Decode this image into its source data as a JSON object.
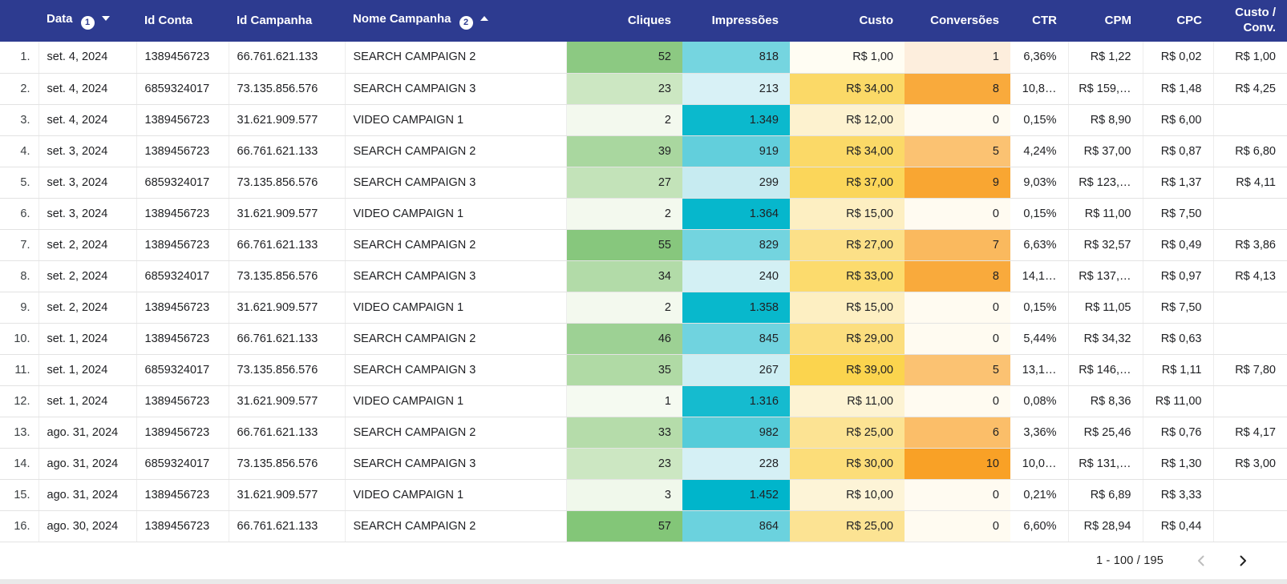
{
  "theme": {
    "header_bg": "#2d3b90",
    "header_text": "#ffffff",
    "row_divider": "#e3e3e3",
    "heat_green_max": "#83c678",
    "heat_teal_max": "#00b5cb",
    "heat_yellow_max": "#fbd44e",
    "heat_orange_max": "#f9a126",
    "chevron_disabled": "#bdbdbd",
    "chevron_enabled": "#212121"
  },
  "table": {
    "columns": [
      {
        "key": "idx",
        "label": ""
      },
      {
        "key": "data",
        "label": "Data",
        "badge": "1",
        "sort": "desc"
      },
      {
        "key": "id_conta",
        "label": "Id Conta"
      },
      {
        "key": "id_campanha",
        "label": "Id Campanha"
      },
      {
        "key": "nome_campanha",
        "label": "Nome Campanha",
        "badge": "2",
        "sort": "asc"
      },
      {
        "key": "cliques",
        "label": "Cliques"
      },
      {
        "key": "impressoes",
        "label": "Impressões"
      },
      {
        "key": "custo",
        "label": "Custo"
      },
      {
        "key": "conversoes",
        "label": "Conversões"
      },
      {
        "key": "ctr",
        "label": "CTR"
      },
      {
        "key": "cpm",
        "label": "CPM"
      },
      {
        "key": "cpc",
        "label": "CPC"
      },
      {
        "key": "custo_conv",
        "label": "Custo / Conv."
      }
    ],
    "rows": [
      {
        "idx": "1.",
        "data": "set. 4, 2024",
        "id_conta": "1389456723",
        "id_campanha": "66.761.621.133",
        "nome_campanha": "SEARCH CAMPAIGN 2",
        "cliques": {
          "v": "52",
          "bg": "#8cc982"
        },
        "impressoes": {
          "v": "818",
          "bg": "#75d5e0"
        },
        "custo": {
          "v": "R$ 1,00",
          "bg": "#fffdf3"
        },
        "conversoes": {
          "v": "1",
          "bg": "#fdeedd"
        },
        "ctr": "6,36%",
        "cpm": "R$ 1,22",
        "cpc": "R$ 0,02",
        "custo_conv": "R$ 1,00"
      },
      {
        "idx": "2.",
        "data": "set. 4, 2024",
        "id_conta": "6859324017",
        "id_campanha": "73.135.856.576",
        "nome_campanha": "SEARCH CAMPAIGN 3",
        "cliques": {
          "v": "23",
          "bg": "#cce7c2"
        },
        "impressoes": {
          "v": "213",
          "bg": "#d8f1f6"
        },
        "custo": {
          "v": "R$ 34,00",
          "bg": "#fbd967"
        },
        "conversoes": {
          "v": "8",
          "bg": "#f9aa3c"
        },
        "ctr": "10,8…",
        "cpm": "R$ 159,…",
        "cpc": "R$ 1,48",
        "custo_conv": "R$ 4,25"
      },
      {
        "idx": "3.",
        "data": "set. 4, 2024",
        "id_conta": "1389456723",
        "id_campanha": "31.621.909.577",
        "nome_campanha": "VIDEO CAMPAIGN 1",
        "cliques": {
          "v": "2",
          "bg": "#f3f9ee"
        },
        "impressoes": {
          "v": "1.349",
          "bg": "#0bb9cd"
        },
        "custo": {
          "v": "R$ 12,00",
          "bg": "#fdf2cf"
        },
        "conversoes": {
          "v": "0",
          "bg": "#fffbf1"
        },
        "ctr": "0,15%",
        "cpm": "R$ 8,90",
        "cpc": "R$ 6,00",
        "custo_conv": ""
      },
      {
        "idx": "4.",
        "data": "set. 3, 2024",
        "id_conta": "1389456723",
        "id_campanha": "66.761.621.133",
        "nome_campanha": "SEARCH CAMPAIGN 2",
        "cliques": {
          "v": "39",
          "bg": "#a9d79f"
        },
        "impressoes": {
          "v": "919",
          "bg": "#62cfdc"
        },
        "custo": {
          "v": "R$ 34,00",
          "bg": "#fbd967"
        },
        "conversoes": {
          "v": "5",
          "bg": "#fbc272"
        },
        "ctr": "4,24%",
        "cpm": "R$ 37,00",
        "cpc": "R$ 0,87",
        "custo_conv": "R$ 6,80"
      },
      {
        "idx": "5.",
        "data": "set. 3, 2024",
        "id_conta": "6859324017",
        "id_campanha": "73.135.856.576",
        "nome_campanha": "SEARCH CAMPAIGN 3",
        "cliques": {
          "v": "27",
          "bg": "#c3e3b9"
        },
        "impressoes": {
          "v": "299",
          "bg": "#c7ebf1"
        },
        "custo": {
          "v": "R$ 37,00",
          "bg": "#fbd65a"
        },
        "conversoes": {
          "v": "9",
          "bg": "#f9a632"
        },
        "ctr": "9,03%",
        "cpm": "R$ 123,…",
        "cpc": "R$ 1,37",
        "custo_conv": "R$ 4,11"
      },
      {
        "idx": "6.",
        "data": "set. 3, 2024",
        "id_conta": "1389456723",
        "id_campanha": "31.621.909.577",
        "nome_campanha": "VIDEO CAMPAIGN 1",
        "cliques": {
          "v": "2",
          "bg": "#f3f9ee"
        },
        "impressoes": {
          "v": "1.364",
          "bg": "#06b7cc"
        },
        "custo": {
          "v": "R$ 15,00",
          "bg": "#fdefc2"
        },
        "conversoes": {
          "v": "0",
          "bg": "#fffbf1"
        },
        "ctr": "0,15%",
        "cpm": "R$ 11,00",
        "cpc": "R$ 7,50",
        "custo_conv": ""
      },
      {
        "idx": "7.",
        "data": "set. 2, 2024",
        "id_conta": "1389456723",
        "id_campanha": "66.761.621.133",
        "nome_campanha": "SEARCH CAMPAIGN 2",
        "cliques": {
          "v": "55",
          "bg": "#87c77d"
        },
        "impressoes": {
          "v": "829",
          "bg": "#73d4df"
        },
        "custo": {
          "v": "R$ 27,00",
          "bg": "#fce088"
        },
        "conversoes": {
          "v": "7",
          "bg": "#fab95e"
        },
        "ctr": "6,63%",
        "cpm": "R$ 32,57",
        "cpc": "R$ 0,49",
        "custo_conv": "R$ 3,86"
      },
      {
        "idx": "8.",
        "data": "set. 2, 2024",
        "id_conta": "6859324017",
        "id_campanha": "73.135.856.576",
        "nome_campanha": "SEARCH CAMPAIGN 3",
        "cliques": {
          "v": "34",
          "bg": "#b2dba8"
        },
        "impressoes": {
          "v": "240",
          "bg": "#d3f0f4"
        },
        "custo": {
          "v": "R$ 33,00",
          "bg": "#fcdb6d"
        },
        "conversoes": {
          "v": "8",
          "bg": "#f9aa3c"
        },
        "ctr": "14,1…",
        "cpm": "R$ 137,…",
        "cpc": "R$ 0,97",
        "custo_conv": "R$ 4,13"
      },
      {
        "idx": "9.",
        "data": "set. 2, 2024",
        "id_conta": "1389456723",
        "id_campanha": "31.621.909.577",
        "nome_campanha": "VIDEO CAMPAIGN 1",
        "cliques": {
          "v": "2",
          "bg": "#f3f9ee"
        },
        "impressoes": {
          "v": "1.358",
          "bg": "#08b8cc"
        },
        "custo": {
          "v": "R$ 15,00",
          "bg": "#fdefc2"
        },
        "conversoes": {
          "v": "0",
          "bg": "#fffbf1"
        },
        "ctr": "0,15%",
        "cpm": "R$ 11,05",
        "cpc": "R$ 7,50",
        "custo_conv": ""
      },
      {
        "idx": "10.",
        "data": "set. 1, 2024",
        "id_conta": "1389456723",
        "id_campanha": "66.761.621.133",
        "nome_campanha": "SEARCH CAMPAIGN 2",
        "cliques": {
          "v": "46",
          "bg": "#9dd194"
        },
        "impressoes": {
          "v": "845",
          "bg": "#70d3df"
        },
        "custo": {
          "v": "R$ 29,00",
          "bg": "#fcde7e"
        },
        "conversoes": {
          "v": "0",
          "bg": "#fffbf1"
        },
        "ctr": "5,44%",
        "cpm": "R$ 34,32",
        "cpc": "R$ 0,63",
        "custo_conv": ""
      },
      {
        "idx": "11.",
        "data": "set. 1, 2024",
        "id_conta": "6859324017",
        "id_campanha": "73.135.856.576",
        "nome_campanha": "SEARCH CAMPAIGN 3",
        "cliques": {
          "v": "35",
          "bg": "#b0daa5"
        },
        "impressoes": {
          "v": "267",
          "bg": "#cdeef3"
        },
        "custo": {
          "v": "R$ 39,00",
          "bg": "#fbd44e"
        },
        "conversoes": {
          "v": "5",
          "bg": "#fbc272"
        },
        "ctr": "13,1…",
        "cpm": "R$ 146,…",
        "cpc": "R$ 1,11",
        "custo_conv": "R$ 7,80"
      },
      {
        "idx": "12.",
        "data": "set. 1, 2024",
        "id_conta": "1389456723",
        "id_campanha": "31.621.909.577",
        "nome_campanha": "VIDEO CAMPAIGN 1",
        "cliques": {
          "v": "1",
          "bg": "#f5faf1"
        },
        "impressoes": {
          "v": "1.316",
          "bg": "#15bbcf"
        },
        "custo": {
          "v": "R$ 11,00",
          "bg": "#fdf3d3"
        },
        "conversoes": {
          "v": "0",
          "bg": "#fffbf1"
        },
        "ctr": "0,08%",
        "cpm": "R$ 8,36",
        "cpc": "R$ 11,00",
        "custo_conv": ""
      },
      {
        "idx": "13.",
        "data": "ago. 31, 2024",
        "id_conta": "1389456723",
        "id_campanha": "66.761.621.133",
        "nome_campanha": "SEARCH CAMPAIGN 2",
        "cliques": {
          "v": "33",
          "bg": "#b5dcaa"
        },
        "impressoes": {
          "v": "982",
          "bg": "#55ccd9"
        },
        "custo": {
          "v": "R$ 25,00",
          "bg": "#fce393"
        },
        "conversoes": {
          "v": "6",
          "bg": "#fbbe69"
        },
        "ctr": "3,36%",
        "cpm": "R$ 25,46",
        "cpc": "R$ 0,76",
        "custo_conv": "R$ 4,17"
      },
      {
        "idx": "14.",
        "data": "ago. 31, 2024",
        "id_conta": "6859324017",
        "id_campanha": "73.135.856.576",
        "nome_campanha": "SEARCH CAMPAIGN 3",
        "cliques": {
          "v": "23",
          "bg": "#cce7c2"
        },
        "impressoes": {
          "v": "228",
          "bg": "#d5f0f5"
        },
        "custo": {
          "v": "R$ 30,00",
          "bg": "#fcdd79"
        },
        "conversoes": {
          "v": "10",
          "bg": "#f9a126"
        },
        "ctr": "10,0…",
        "cpm": "R$ 131,…",
        "cpc": "R$ 1,30",
        "custo_conv": "R$ 3,00"
      },
      {
        "idx": "15.",
        "data": "ago. 31, 2024",
        "id_conta": "1389456723",
        "id_campanha": "31.621.909.577",
        "nome_campanha": "VIDEO CAMPAIGN 1",
        "cliques": {
          "v": "3",
          "bg": "#f0f8eb"
        },
        "impressoes": {
          "v": "1.452",
          "bg": "#00b5cb"
        },
        "custo": {
          "v": "R$ 10,00",
          "bg": "#fdf4d7"
        },
        "conversoes": {
          "v": "0",
          "bg": "#fffbf1"
        },
        "ctr": "0,21%",
        "cpm": "R$ 6,89",
        "cpc": "R$ 3,33",
        "custo_conv": ""
      },
      {
        "idx": "16.",
        "data": "ago. 30, 2024",
        "id_conta": "1389456723",
        "id_campanha": "66.761.621.133",
        "nome_campanha": "SEARCH CAMPAIGN 2",
        "cliques": {
          "v": "57",
          "bg": "#83c678"
        },
        "impressoes": {
          "v": "864",
          "bg": "#6bd2de"
        },
        "custo": {
          "v": "R$ 25,00",
          "bg": "#fce393"
        },
        "conversoes": {
          "v": "0",
          "bg": "#fffbf1"
        },
        "ctr": "6,60%",
        "cpm": "R$ 28,94",
        "cpc": "R$ 0,44",
        "custo_conv": ""
      }
    ]
  },
  "footer": {
    "range_label": "1 - 100 / 195"
  }
}
